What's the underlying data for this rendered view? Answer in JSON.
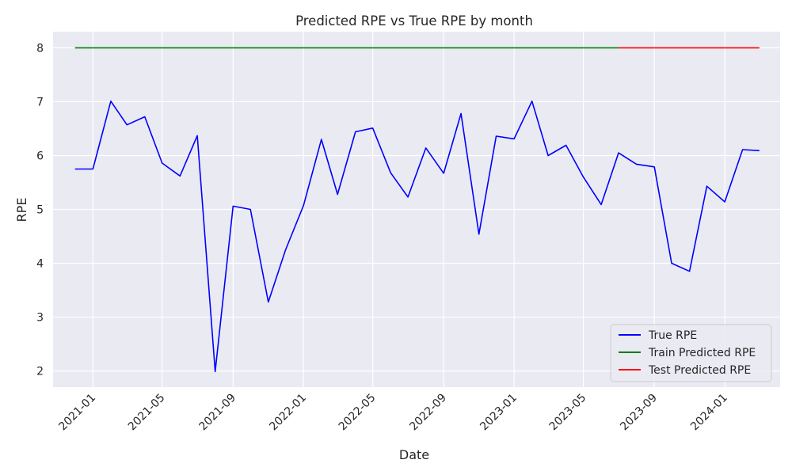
{
  "chart_data": {
    "type": "line",
    "title": "Predicted RPE vs True RPE by month",
    "xlabel": "Date",
    "ylabel": "RPE",
    "ylim": [
      1.7,
      8.3
    ],
    "xlim": [
      "2020-10-24",
      "2024-04-06"
    ],
    "yticks": [
      2,
      3,
      4,
      5,
      6,
      7,
      8
    ],
    "xticks": [
      "2021-01",
      "2021-05",
      "2021-09",
      "2022-01",
      "2022-05",
      "2022-09",
      "2023-01",
      "2023-05",
      "2023-09",
      "2024-01"
    ],
    "grid": true,
    "legend_position": "lower-right",
    "series": [
      {
        "name": "True RPE",
        "color": "#0000ff",
        "x": [
          "2020-12-01",
          "2021-01-01",
          "2021-02-01",
          "2021-03-01",
          "2021-04-01",
          "2021-05-01",
          "2021-06-01",
          "2021-07-01",
          "2021-08-01",
          "2021-09-01",
          "2021-10-01",
          "2021-11-01",
          "2021-12-01",
          "2022-01-01",
          "2022-02-01",
          "2022-03-01",
          "2022-04-01",
          "2022-05-01",
          "2022-06-01",
          "2022-07-01",
          "2022-08-01",
          "2022-09-01",
          "2022-10-01",
          "2022-11-01",
          "2022-12-01",
          "2023-01-01",
          "2023-02-01",
          "2023-03-01",
          "2023-04-01",
          "2023-05-01",
          "2023-06-01",
          "2023-07-01",
          "2023-08-01",
          "2023-09-01",
          "2023-10-01",
          "2023-11-01",
          "2023-12-01",
          "2024-01-01",
          "2024-02-01",
          "2024-03-01"
        ],
        "values": [
          5.75,
          5.75,
          7.01,
          6.57,
          6.72,
          5.86,
          5.62,
          6.37,
          1.99,
          5.06,
          5.0,
          3.28,
          4.25,
          5.07,
          6.3,
          5.28,
          6.44,
          6.51,
          5.68,
          5.23,
          6.14,
          5.67,
          6.78,
          4.54,
          6.36,
          6.31,
          7.01,
          6.0,
          6.19,
          5.6,
          5.09,
          6.05,
          5.84,
          5.79,
          4.0,
          3.85,
          5.43,
          5.14,
          6.11,
          6.09
        ]
      },
      {
        "name": "Train Predicted RPE",
        "color": "#008000",
        "x": [
          "2020-12-01",
          "2023-07-01"
        ],
        "values": [
          8.0,
          8.0
        ]
      },
      {
        "name": "Test Predicted RPE",
        "color": "#ff0000",
        "x": [
          "2023-07-01",
          "2024-03-01"
        ],
        "values": [
          8.0,
          8.0
        ]
      }
    ]
  }
}
